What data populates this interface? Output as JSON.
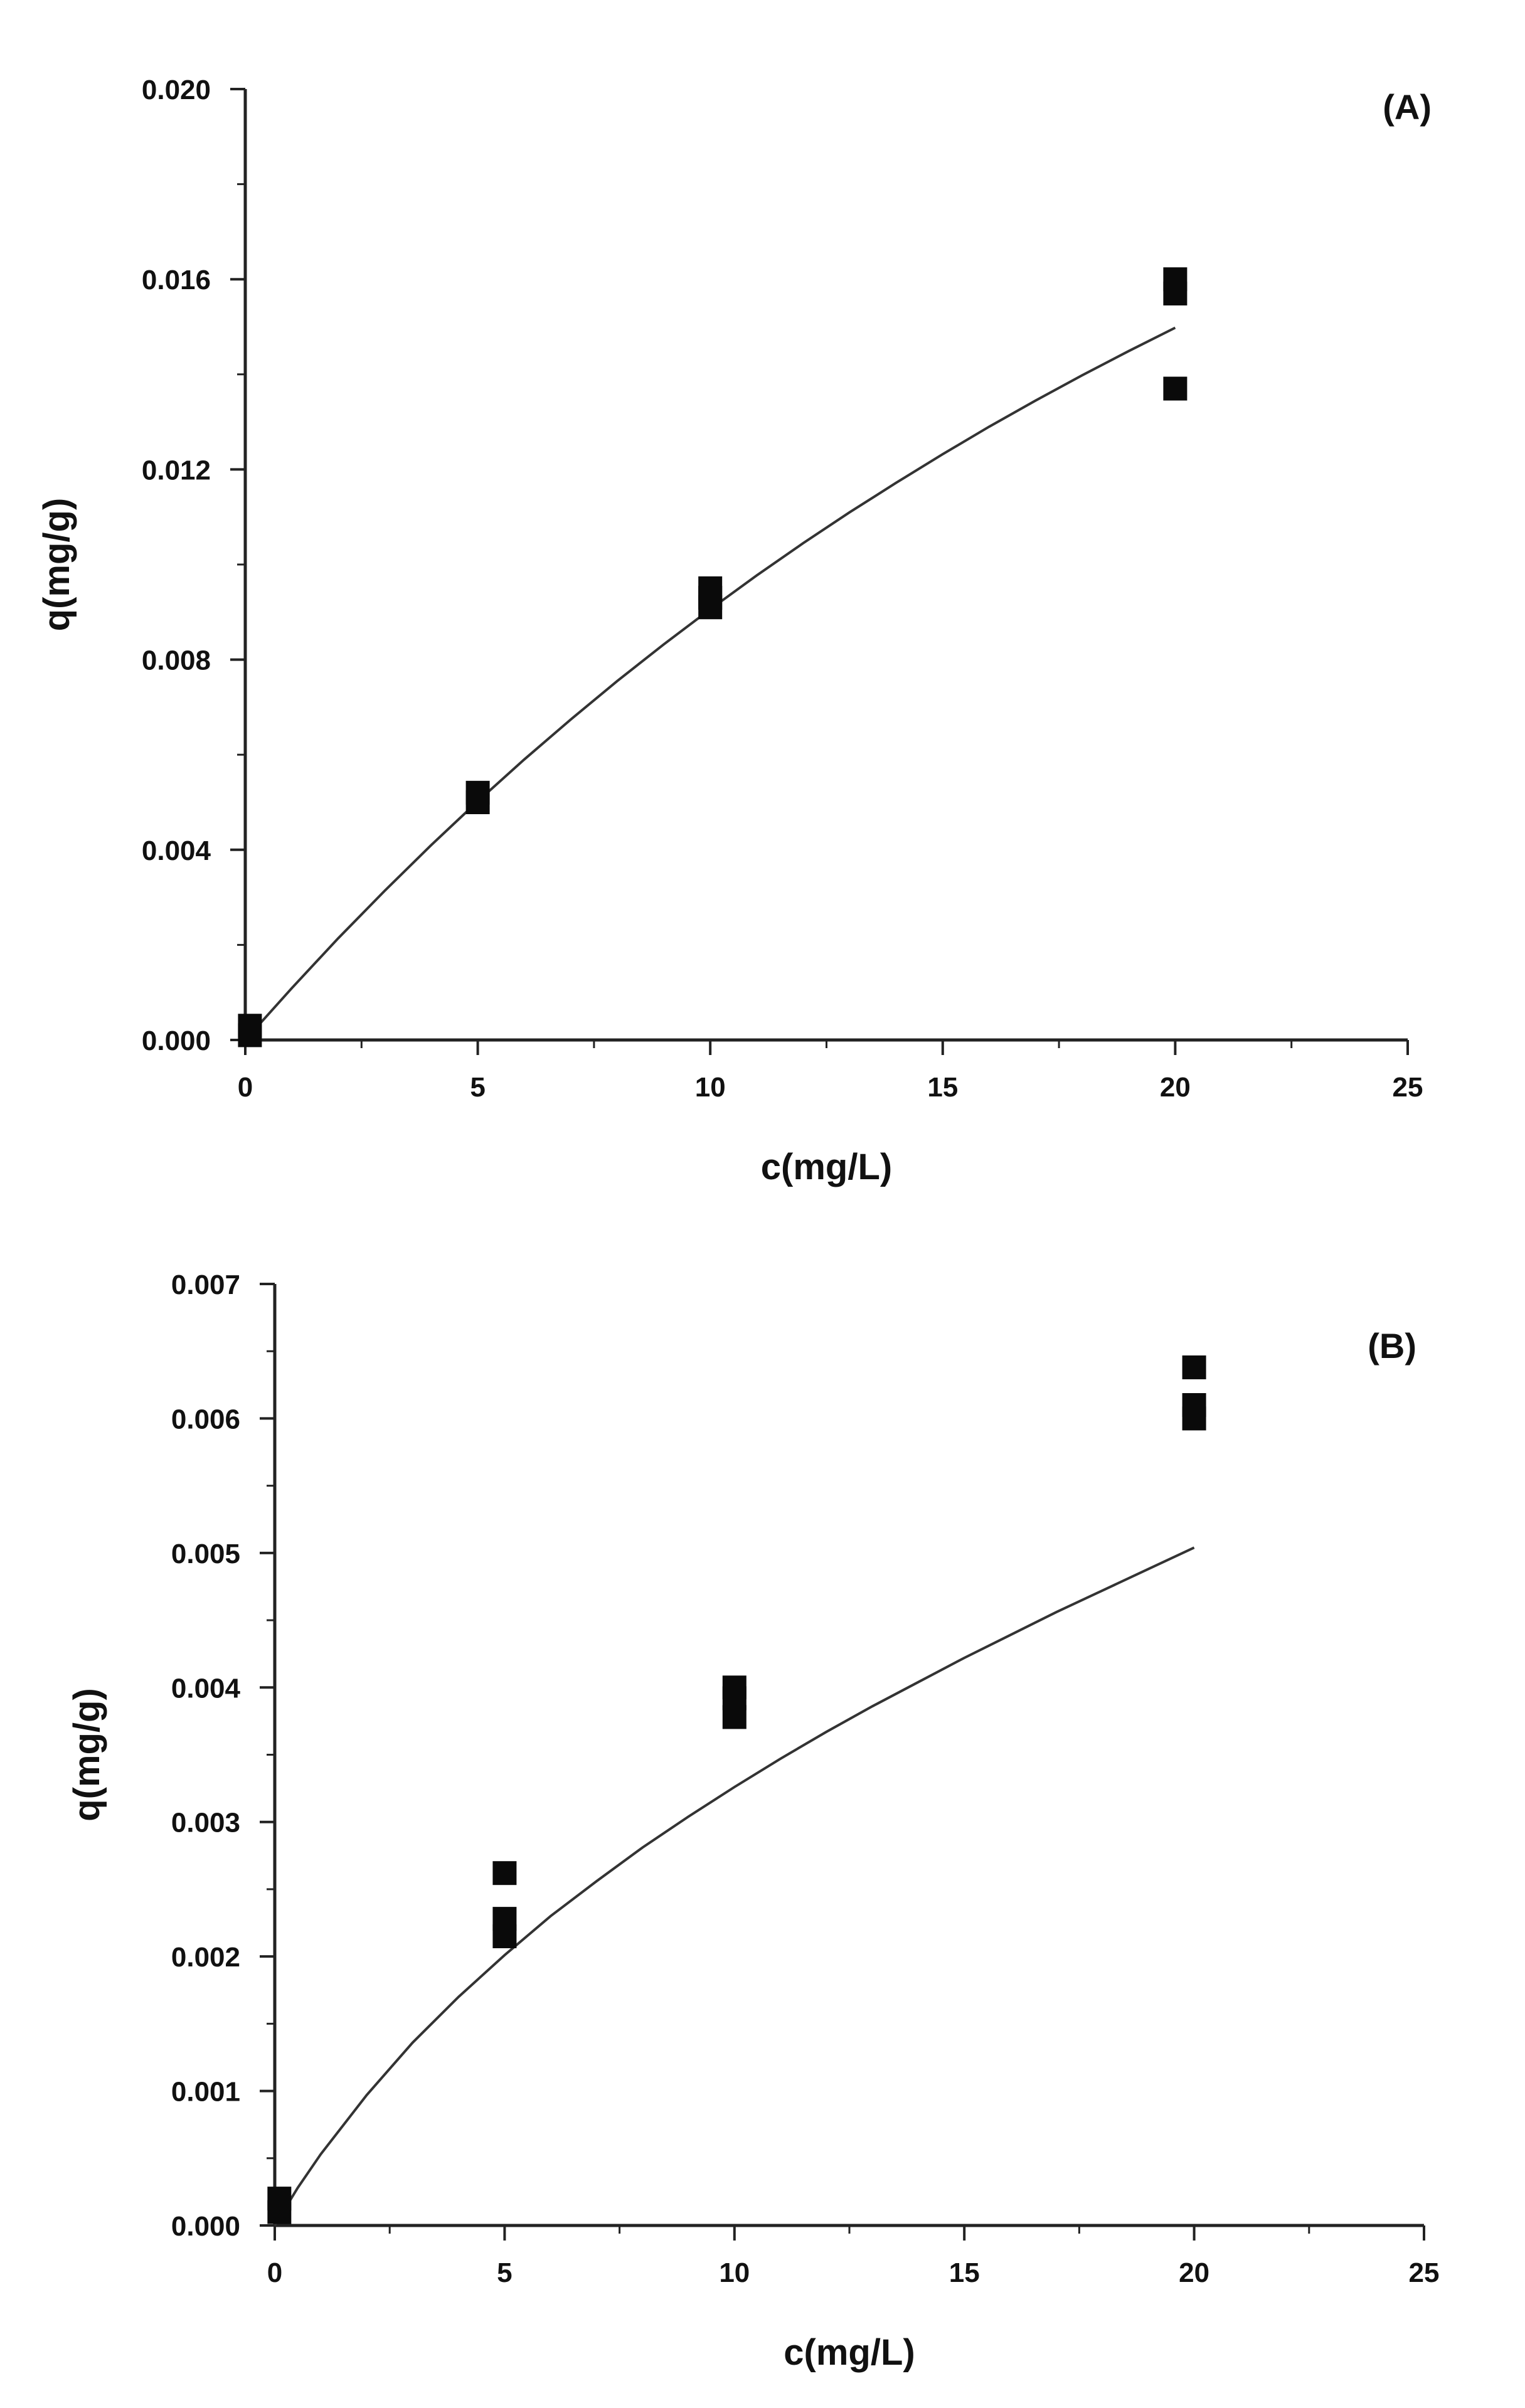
{
  "chart_data": [
    {
      "type": "scatter",
      "panel_label": "(A)",
      "xlabel": "c(mg/L)",
      "ylabel": "q(mg/g)",
      "xlim": [
        0,
        25
      ],
      "ylim": [
        0.0,
        0.02
      ],
      "x_ticks": [
        "0",
        "5",
        "10",
        "15",
        "20",
        "25"
      ],
      "y_ticks": [
        "0.000",
        "0.004",
        "0.008",
        "0.012",
        "0.016",
        "0.020"
      ],
      "x_tick_values": [
        0,
        5,
        10,
        15,
        20,
        25
      ],
      "y_tick_values": [
        0.0,
        0.004,
        0.008,
        0.012,
        0.016,
        0.02
      ],
      "grid": false,
      "series": [
        {
          "points": [
            {
              "x": 0.1,
              "y": 0.0003
            },
            {
              "x": 0.1,
              "y": 0.0001
            },
            {
              "x": 5,
              "y": 0.0052
            },
            {
              "x": 5,
              "y": 0.005
            },
            {
              "x": 10,
              "y": 0.0095
            },
            {
              "x": 10,
              "y": 0.0093
            },
            {
              "x": 10,
              "y": 0.0091
            },
            {
              "x": 20,
              "y": 0.016
            },
            {
              "x": 20,
              "y": 0.0157
            },
            {
              "x": 20,
              "y": 0.0137
            }
          ]
        }
      ],
      "fit_curve": {
        "x": [
          0,
          1,
          2,
          3,
          4,
          5,
          6,
          7,
          8,
          9,
          10,
          11,
          12,
          13,
          14,
          15,
          16,
          17,
          18,
          19,
          20
        ],
        "y": [
          0.0,
          0.00109,
          0.00214,
          0.00314,
          0.0041,
          0.00502,
          0.0059,
          0.00674,
          0.00755,
          0.00832,
          0.00906,
          0.00977,
          0.01045,
          0.0111,
          0.01172,
          0.01232,
          0.0129,
          0.01345,
          0.01398,
          0.01449,
          0.01498
        ]
      }
    },
    {
      "type": "scatter",
      "panel_label": "(B)",
      "xlabel": "c(mg/L)",
      "ylabel": "q(mg/g)",
      "xlim": [
        0,
        25
      ],
      "ylim": [
        0.0,
        0.007
      ],
      "x_ticks": [
        "0",
        "5",
        "10",
        "15",
        "20",
        "25"
      ],
      "y_ticks": [
        "0.000",
        "0.001",
        "0.002",
        "0.003",
        "0.004",
        "0.005",
        "0.006",
        "0.007"
      ],
      "x_tick_values": [
        0,
        5,
        10,
        15,
        20,
        25
      ],
      "y_tick_values": [
        0.0,
        0.001,
        0.002,
        0.003,
        0.004,
        0.005,
        0.006,
        0.007
      ],
      "grid": false,
      "series": [
        {
          "points": [
            {
              "x": 0.1,
              "y": 0.0002
            },
            {
              "x": 0.1,
              "y": 0.0001
            },
            {
              "x": 5,
              "y": 0.00262
            },
            {
              "x": 5,
              "y": 0.00228
            },
            {
              "x": 5,
              "y": 0.00215
            },
            {
              "x": 10,
              "y": 0.004
            },
            {
              "x": 10,
              "y": 0.00392
            },
            {
              "x": 10,
              "y": 0.00378
            },
            {
              "x": 20,
              "y": 0.00638
            },
            {
              "x": 20,
              "y": 0.0061
            },
            {
              "x": 20,
              "y": 0.006
            }
          ]
        }
      ],
      "fit_curve": {
        "x": [
          0,
          0.5,
          1,
          2,
          3,
          4,
          5,
          6,
          7,
          8,
          9,
          10,
          11,
          12,
          13,
          14,
          15,
          16,
          17,
          18,
          19,
          20
        ],
        "y": [
          0.0,
          0.00028,
          0.00053,
          0.00097,
          0.00136,
          0.0017,
          0.00201,
          0.0023,
          0.00256,
          0.00281,
          0.00304,
          0.00326,
          0.00347,
          0.00367,
          0.00386,
          0.00404,
          0.00422,
          0.00439,
          0.00456,
          0.00472,
          0.00488,
          0.00504
        ]
      }
    }
  ]
}
